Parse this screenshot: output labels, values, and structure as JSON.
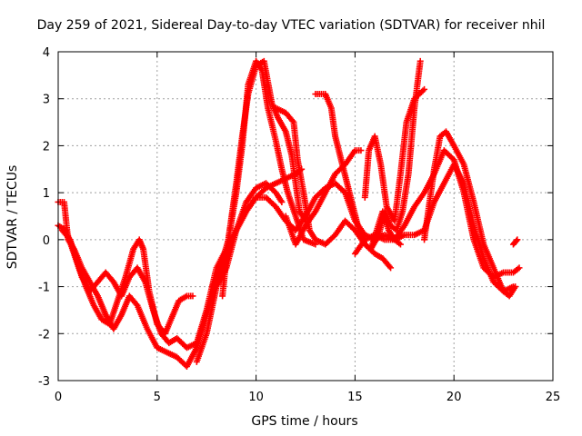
{
  "chart_data": {
    "type": "scatter",
    "title": "Day 259 of 2021, Sidereal Day-to-day VTEC variation (SDTVAR) for receiver nhil",
    "xlabel": "GPS time / hours",
    "ylabel": "SDTVAR / TECUs",
    "xlim": [
      0,
      25
    ],
    "ylim": [
      -3,
      4
    ],
    "xticks": [
      "0",
      "5",
      "10",
      "15",
      "20",
      "25"
    ],
    "yticks": [
      "-3",
      "-2",
      "-1",
      "0",
      "1",
      "2",
      "3",
      "4"
    ],
    "grid": true,
    "marker": "plus",
    "color": "#ff0000",
    "series": [
      {
        "values": [
          [
            0.0,
            0.8
          ],
          [
            0.3,
            0.8
          ],
          [
            0.5,
            0.0
          ],
          [
            0.8,
            -0.2
          ],
          [
            1.2,
            -0.6
          ],
          [
            1.6,
            -0.9
          ],
          [
            2.0,
            -1.2
          ],
          [
            2.4,
            -1.6
          ],
          [
            2.8,
            -1.9
          ],
          [
            3.2,
            -1.6
          ],
          [
            3.6,
            -1.2
          ],
          [
            4.0,
            -1.4
          ],
          [
            4.5,
            -1.9
          ],
          [
            5.0,
            -2.3
          ],
          [
            5.5,
            -2.4
          ],
          [
            6.0,
            -2.5
          ],
          [
            6.5,
            -2.7
          ],
          [
            7.0,
            -2.3
          ],
          [
            7.5,
            -1.6
          ],
          [
            8.0,
            -0.9
          ],
          [
            8.5,
            -0.3
          ],
          [
            9.0,
            0.2
          ],
          [
            9.5,
            0.6
          ],
          [
            10.0,
            0.9
          ],
          [
            10.5,
            1.1
          ],
          [
            11.0,
            1.2
          ],
          [
            11.5,
            1.3
          ],
          [
            12.0,
            1.4
          ],
          [
            12.3,
            1.5
          ]
        ]
      },
      {
        "values": [
          [
            0.0,
            0.3
          ],
          [
            0.4,
            0.2
          ],
          [
            0.8,
            -0.3
          ],
          [
            1.2,
            -0.8
          ],
          [
            1.6,
            -1.1
          ],
          [
            2.0,
            -0.9
          ],
          [
            2.4,
            -0.7
          ],
          [
            2.8,
            -0.9
          ],
          [
            3.2,
            -1.2
          ],
          [
            3.6,
            -0.8
          ],
          [
            4.0,
            -0.6
          ],
          [
            4.4,
            -0.9
          ],
          [
            4.8,
            -1.5
          ],
          [
            5.2,
            -2.0
          ],
          [
            5.6,
            -2.2
          ],
          [
            6.0,
            -2.1
          ],
          [
            6.5,
            -2.3
          ],
          [
            7.0,
            -2.2
          ],
          [
            7.5,
            -1.5
          ],
          [
            8.0,
            -0.6
          ],
          [
            8.5,
            -0.2
          ],
          [
            9.0,
            0.2
          ],
          [
            9.5,
            0.8
          ],
          [
            10.0,
            1.1
          ],
          [
            10.5,
            1.2
          ],
          [
            11.0,
            1.0
          ],
          [
            11.3,
            0.8
          ]
        ]
      },
      {
        "values": [
          [
            0.2,
            0.2
          ],
          [
            0.6,
            0.0
          ],
          [
            1.0,
            -0.5
          ],
          [
            1.4,
            -1.0
          ],
          [
            1.8,
            -1.4
          ],
          [
            2.2,
            -1.7
          ],
          [
            2.6,
            -1.8
          ],
          [
            3.0,
            -1.3
          ],
          [
            3.4,
            -0.8
          ],
          [
            3.8,
            -0.2
          ],
          [
            4.1,
            0.0
          ],
          [
            4.3,
            -0.2
          ],
          [
            4.6,
            -1.1
          ],
          [
            5.0,
            -1.8
          ],
          [
            5.4,
            -2.0
          ],
          [
            5.8,
            -1.6
          ],
          [
            6.1,
            -1.3
          ],
          [
            6.5,
            -1.2
          ],
          [
            6.8,
            -1.2
          ]
        ]
      },
      {
        "values": [
          [
            7.0,
            -2.6
          ],
          [
            7.5,
            -2.0
          ],
          [
            8.0,
            -1.0
          ],
          [
            8.5,
            -0.6
          ],
          [
            9.0,
            0.2
          ],
          [
            9.5,
            0.6
          ],
          [
            10.0,
            0.9
          ],
          [
            10.5,
            0.9
          ],
          [
            11.0,
            0.7
          ],
          [
            11.5,
            0.4
          ],
          [
            12.0,
            0.2
          ],
          [
            12.5,
            0.5
          ],
          [
            13.0,
            0.9
          ],
          [
            13.5,
            1.1
          ],
          [
            14.0,
            1.2
          ],
          [
            14.5,
            1.0
          ],
          [
            15.0,
            0.4
          ],
          [
            15.5,
            0.1
          ],
          [
            16.0,
            0.0
          ],
          [
            16.5,
            0.1
          ],
          [
            17.0,
            0.0
          ],
          [
            17.5,
            0.3
          ],
          [
            18.0,
            0.7
          ],
          [
            18.5,
            1.0
          ],
          [
            19.0,
            1.4
          ],
          [
            19.5,
            1.9
          ],
          [
            20.0,
            1.7
          ],
          [
            20.5,
            1.0
          ],
          [
            21.0,
            0.0
          ],
          [
            21.5,
            -0.6
          ],
          [
            22.0,
            -0.8
          ],
          [
            22.5,
            -0.7
          ],
          [
            23.0,
            -0.7
          ],
          [
            23.3,
            -0.6
          ]
        ]
      },
      {
        "values": [
          [
            7.8,
            -1.0
          ],
          [
            8.2,
            -0.6
          ],
          [
            8.6,
            0.0
          ],
          [
            9.0,
            1.0
          ],
          [
            9.3,
            2.0
          ],
          [
            9.6,
            3.3
          ],
          [
            10.0,
            3.8
          ],
          [
            10.3,
            3.6
          ],
          [
            10.6,
            2.8
          ],
          [
            11.0,
            2.1
          ],
          [
            11.3,
            1.5
          ],
          [
            11.6,
            1.0
          ],
          [
            12.0,
            0.5
          ],
          [
            12.4,
            0.0
          ],
          [
            13.0,
            -0.1
          ]
        ]
      },
      {
        "values": [
          [
            8.3,
            -1.2
          ],
          [
            8.6,
            0.0
          ],
          [
            9.0,
            1.2
          ],
          [
            9.3,
            2.2
          ],
          [
            9.6,
            3.1
          ],
          [
            10.0,
            3.7
          ],
          [
            10.4,
            3.8
          ],
          [
            10.8,
            2.9
          ],
          [
            11.1,
            2.6
          ],
          [
            11.5,
            2.3
          ],
          [
            11.8,
            1.8
          ],
          [
            12.2,
            0.6
          ],
          [
            12.5,
            0.4
          ]
        ]
      },
      {
        "values": [
          [
            11.0,
            2.8
          ],
          [
            11.5,
            2.7
          ],
          [
            11.9,
            2.5
          ],
          [
            12.1,
            1.7
          ],
          [
            12.4,
            1.0
          ],
          [
            12.7,
            0.2
          ],
          [
            13.0,
            0.0
          ],
          [
            13.5,
            -0.1
          ],
          [
            14.0,
            0.1
          ],
          [
            14.5,
            0.4
          ],
          [
            15.0,
            0.2
          ],
          [
            15.5,
            -0.1
          ],
          [
            16.0,
            -0.3
          ],
          [
            16.4,
            -0.4
          ],
          [
            16.8,
            -0.6
          ]
        ]
      },
      {
        "values": [
          [
            11.5,
            0.5
          ],
          [
            12.0,
            -0.1
          ],
          [
            12.5,
            0.3
          ],
          [
            13.0,
            0.6
          ],
          [
            13.5,
            1.0
          ],
          [
            14.0,
            1.4
          ],
          [
            14.5,
            1.6
          ],
          [
            15.0,
            1.9
          ],
          [
            15.3,
            1.9
          ]
        ]
      },
      {
        "values": [
          [
            13.0,
            3.1
          ],
          [
            13.5,
            3.1
          ],
          [
            13.8,
            2.8
          ],
          [
            14.0,
            2.2
          ],
          [
            14.3,
            1.7
          ],
          [
            14.6,
            1.2
          ],
          [
            14.9,
            0.7
          ],
          [
            15.2,
            0.2
          ],
          [
            15.5,
            -0.1
          ],
          [
            15.8,
            -0.2
          ],
          [
            16.1,
            0.2
          ],
          [
            16.4,
            0.6
          ],
          [
            16.7,
            0.2
          ],
          [
            17.0,
            0.0
          ],
          [
            17.3,
            -0.1
          ]
        ]
      },
      {
        "values": [
          [
            15.8,
            -0.2
          ],
          [
            16.2,
            0.1
          ],
          [
            16.5,
            0.6
          ],
          [
            16.8,
            0.3
          ],
          [
            17.1,
            0.2
          ],
          [
            17.4,
            0.6
          ],
          [
            17.7,
            1.4
          ],
          [
            18.0,
            2.8
          ],
          [
            18.3,
            3.8
          ]
        ]
      },
      {
        "values": [
          [
            15.5,
            0.9
          ],
          [
            15.7,
            1.9
          ],
          [
            16.0,
            2.2
          ],
          [
            16.3,
            1.6
          ],
          [
            16.6,
            0.7
          ],
          [
            17.0,
            0.4
          ],
          [
            17.3,
            1.4
          ],
          [
            17.6,
            2.5
          ],
          [
            18.0,
            3.0
          ],
          [
            18.5,
            3.2
          ]
        ]
      },
      {
        "values": [
          [
            15.0,
            -0.3
          ],
          [
            15.5,
            0.0
          ],
          [
            16.0,
            0.1
          ],
          [
            16.5,
            0.0
          ],
          [
            17.0,
            0.0
          ],
          [
            17.5,
            0.1
          ],
          [
            18.0,
            0.1
          ],
          [
            18.5,
            0.2
          ],
          [
            19.0,
            0.8
          ],
          [
            19.5,
            1.2
          ],
          [
            20.0,
            1.6
          ],
          [
            20.5,
            1.2
          ],
          [
            21.0,
            0.3
          ],
          [
            21.5,
            -0.4
          ],
          [
            22.0,
            -0.9
          ],
          [
            22.5,
            -1.1
          ],
          [
            23.0,
            -1.0
          ]
        ]
      },
      {
        "values": [
          [
            18.5,
            0.0
          ],
          [
            19.0,
            1.5
          ],
          [
            19.3,
            2.2
          ],
          [
            19.6,
            2.3
          ],
          [
            20.0,
            2.0
          ],
          [
            20.5,
            1.6
          ],
          [
            21.0,
            0.8
          ],
          [
            21.5,
            -0.1
          ],
          [
            22.0,
            -0.6
          ],
          [
            22.5,
            -1.1
          ],
          [
            22.8,
            -1.2
          ],
          [
            23.1,
            -1.0
          ]
        ]
      },
      {
        "values": [
          [
            23.0,
            -0.1
          ],
          [
            23.2,
            0.0
          ]
        ]
      }
    ]
  }
}
